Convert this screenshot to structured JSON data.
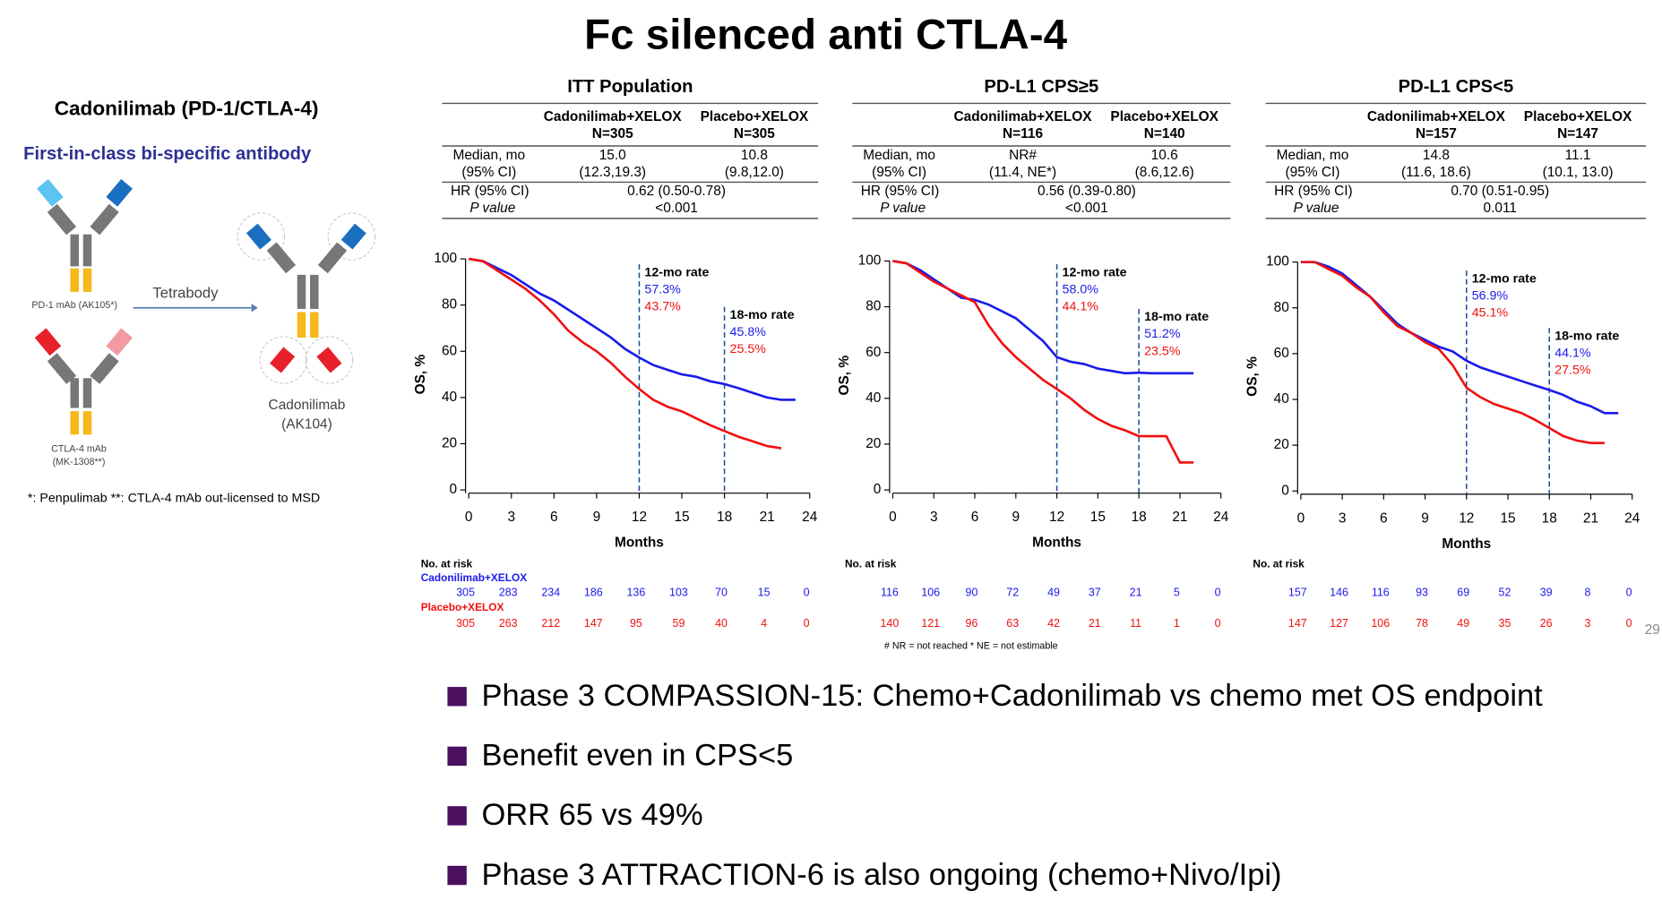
{
  "slide": {
    "title": "Fc silenced anti CTLA-4",
    "left_title": "Cadonilimab (PD-1/CTLA-4)",
    "left_subtitle": "First-in-class bi-specific antibody",
    "pd1_label": "PD-1 mAb (AK105*)",
    "ctla4_label": [
      "CTLA-4 mAb",
      "(MK-1308**)"
    ],
    "arrow_label": "Tetrabody",
    "product_label": [
      "Cadonilimab",
      "(AK104)"
    ],
    "left_footnote": "*: Penpulimab    **: CTLA-4 mAb out-licensed to MSD",
    "bullets": [
      "Phase 3 COMPASSION-15:  Chemo+Cadonilimab vs chemo met OS endpoint",
      "Benefit even in CPS<5",
      "ORR 65 vs 49%",
      "Phase 3 ATTRACTION-6 is also ongoing (chemo+Nivo/Ipi)"
    ],
    "page_number": "29",
    "footnote": "# NR = not reached    * NE = not estimable"
  },
  "chart_data": [
    {
      "type": "line",
      "title": "ITT Population",
      "table": {
        "header": [
          [
            "Cadonilimab+XELOX",
            "N=305"
          ],
          [
            "Placebo+XELOX",
            "N=305"
          ]
        ],
        "median_label": [
          "Median, mo",
          "(95% CI)"
        ],
        "median": [
          [
            "15.0",
            "(12.3,19.3)"
          ],
          [
            "10.8",
            "(9.8,12.0)"
          ]
        ],
        "hr_label": [
          "HR (95% CI)",
          "P value"
        ],
        "hr": [
          "0.62 (0.50-0.78)",
          "<0.001"
        ]
      },
      "x_label": "Months",
      "y_label": "OS, %",
      "xlim": [
        0,
        24
      ],
      "ylim": [
        0,
        100
      ],
      "xticks": [
        0,
        3,
        6,
        9,
        12,
        15,
        18,
        21,
        24
      ],
      "yticks": [
        0,
        20,
        40,
        60,
        80,
        100
      ],
      "x": [
        0,
        1,
        2,
        3,
        4,
        5,
        6,
        7,
        8,
        9,
        10,
        11,
        12,
        13,
        14,
        15,
        16,
        17,
        18,
        19,
        20,
        21,
        22,
        23
      ],
      "series": [
        {
          "name": "Cadonilimab+XELOX",
          "color": "#1a1aeb",
          "values": [
            100,
            99,
            96,
            93,
            89,
            85,
            82,
            78,
            74,
            70,
            66,
            61,
            57.3,
            54,
            52,
            50,
            49,
            47,
            45.8,
            44,
            42,
            40,
            39,
            39
          ]
        },
        {
          "name": "Placebo+XELOX",
          "color": "#f01010",
          "values": [
            100,
            99,
            95,
            91,
            87,
            82,
            76,
            69,
            64,
            60,
            55,
            49,
            43.7,
            39,
            36,
            34,
            31,
            28,
            25.5,
            23,
            21,
            19,
            18,
            null
          ]
        }
      ],
      "annotations": [
        {
          "label": "12-mo rate",
          "x": 12,
          "value_labels": [
            "57.3%",
            "43.7%"
          ]
        },
        {
          "label": "18-mo rate",
          "x": 18,
          "value_labels": [
            "45.8%",
            "25.5%"
          ]
        }
      ],
      "risk_table": {
        "title": "No. at risk",
        "rows": [
          [
            305,
            283,
            234,
            186,
            136,
            103,
            70,
            15,
            0
          ],
          [
            305,
            263,
            212,
            147,
            95,
            59,
            40,
            4,
            0
          ]
        ]
      }
    },
    {
      "type": "line",
      "title": "PD-L1 CPS≥5",
      "table": {
        "header": [
          [
            "Cadonilimab+XELOX",
            "N=116"
          ],
          [
            "Placebo+XELOX",
            "N=140"
          ]
        ],
        "median_label": [
          "Median, mo",
          "(95% CI)"
        ],
        "median": [
          [
            "NR#",
            "(11.4, NE*)"
          ],
          [
            "10.6",
            "(8.6,12.6)"
          ]
        ],
        "hr_label": [
          "HR (95% CI)",
          "P value"
        ],
        "hr": [
          "0.56 (0.39-0.80)",
          "<0.001"
        ]
      },
      "x_label": "Months",
      "y_label": "OS, %",
      "xlim": [
        0,
        24
      ],
      "ylim": [
        0,
        100
      ],
      "xticks": [
        0,
        3,
        6,
        9,
        12,
        15,
        18,
        21,
        24
      ],
      "yticks": [
        0,
        20,
        40,
        60,
        80,
        100
      ],
      "x": [
        0,
        1,
        2,
        3,
        4,
        5,
        6,
        7,
        8,
        9,
        10,
        11,
        12,
        13,
        14,
        15,
        16,
        17,
        18,
        19,
        20,
        21,
        22
      ],
      "series": [
        {
          "color": "#1a1aeb",
          "values": [
            100,
            99,
            96,
            92,
            88,
            84,
            83,
            81,
            78,
            75,
            70,
            65,
            58,
            56,
            55,
            53,
            52,
            51,
            51.2,
            51,
            51,
            51,
            51
          ]
        },
        {
          "color": "#f01010",
          "values": [
            100,
            99,
            95,
            91,
            88,
            85,
            82,
            72,
            64,
            58,
            53,
            48,
            44.1,
            40,
            35,
            31,
            28,
            26,
            23.5,
            23.5,
            23.5,
            12,
            12
          ]
        }
      ],
      "annotations": [
        {
          "label": "12-mo rate",
          "x": 12,
          "value_labels": [
            "58.0%",
            "44.1%"
          ]
        },
        {
          "label": "18-mo rate",
          "x": 18,
          "value_labels": [
            "51.2%",
            "23.5%"
          ]
        }
      ],
      "risk_table": {
        "title": "No. at risk",
        "rows": [
          [
            116,
            106,
            90,
            72,
            49,
            37,
            21,
            5,
            0
          ],
          [
            140,
            121,
            96,
            63,
            42,
            21,
            11,
            1,
            0
          ]
        ]
      }
    },
    {
      "type": "line",
      "title": "PD-L1 CPS<5",
      "table": {
        "header": [
          [
            "Cadonilimab+XELOX",
            "N=157"
          ],
          [
            "Placebo+XELOX",
            "N=147"
          ]
        ],
        "median_label": [
          "Median, mo",
          "(95% CI)"
        ],
        "median": [
          [
            "14.8",
            "(11.6, 18.6)"
          ],
          [
            "11.1",
            "(10.1, 13.0)"
          ]
        ],
        "hr_label": [
          "HR (95% CI)",
          "P value"
        ],
        "hr": [
          "0.70 (0.51-0.95)",
          "0.011"
        ]
      },
      "x_label": "Months",
      "y_label": "OS, %",
      "xlim": [
        0,
        24
      ],
      "ylim": [
        0,
        100
      ],
      "xticks": [
        0,
        3,
        6,
        9,
        12,
        15,
        18,
        21,
        24
      ],
      "yticks": [
        0,
        20,
        40,
        60,
        80,
        100
      ],
      "x": [
        0,
        1,
        2,
        3,
        4,
        5,
        6,
        7,
        8,
        9,
        10,
        11,
        12,
        13,
        14,
        15,
        16,
        17,
        18,
        19,
        20,
        21,
        22,
        23
      ],
      "series": [
        {
          "color": "#1a1aeb",
          "values": [
            100,
            100,
            98,
            95,
            90,
            85,
            79,
            73,
            69,
            66,
            63,
            61,
            56.9,
            54,
            52,
            50,
            48,
            46,
            44.1,
            42,
            39,
            37,
            34,
            34
          ]
        },
        {
          "color": "#f01010",
          "values": [
            100,
            100,
            97,
            94,
            89,
            85,
            78,
            72,
            69,
            65,
            62,
            55,
            45.1,
            41,
            38,
            36,
            34,
            31,
            27.5,
            24,
            22,
            21,
            21,
            null
          ]
        }
      ],
      "annotations": [
        {
          "label": "12-mo rate",
          "x": 12,
          "value_labels": [
            "56.9%",
            "45.1%"
          ]
        },
        {
          "label": "18-mo rate",
          "x": 18,
          "value_labels": [
            "44.1%",
            "27.5%"
          ]
        }
      ],
      "risk_table": {
        "title": "No. at risk",
        "rows": [
          [
            157,
            146,
            116,
            93,
            69,
            52,
            39,
            8,
            0
          ],
          [
            147,
            127,
            106,
            78,
            49,
            35,
            26,
            3,
            0
          ]
        ]
      }
    }
  ]
}
